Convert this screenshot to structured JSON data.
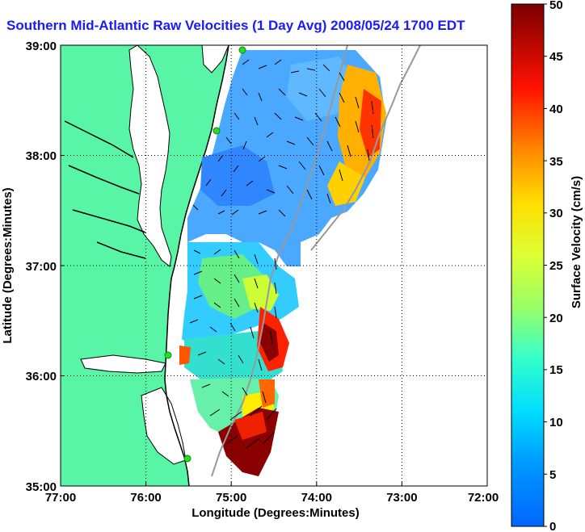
{
  "title": "Southern Mid-Atlantic Raw Velocities (1 Day Avg) 2008/05/24 1700 EDT",
  "x_axis": {
    "label": "Longitude (Degrees:Minutes)",
    "ticks": [
      "77:00",
      "76:00",
      "75:00",
      "74:00",
      "73:00",
      "72:00"
    ]
  },
  "y_axis": {
    "label": "Latitude (Degrees:Minutes)",
    "ticks": [
      "39:00",
      "38:00",
      "37:00",
      "36:00",
      "35:00"
    ]
  },
  "colorbar": {
    "label": "Surface Velocity (cm/s)",
    "ticks": [
      "50",
      "45",
      "40",
      "35",
      "30",
      "25",
      "20",
      "15",
      "10",
      "5",
      "0"
    ],
    "min": 0,
    "max": 50,
    "colormap": [
      "#0000ff",
      "#0080ff",
      "#00ffff",
      "#80ff80",
      "#ffff00",
      "#ff8000",
      "#ff0000",
      "#800000"
    ]
  },
  "colors": {
    "land": "#57f5a5",
    "ocean_background": "#ffffff",
    "coastline": "#000000",
    "bathymetry": "#999999",
    "gridline": "#000000",
    "station_marker": "#22dd22",
    "title_color": "#1a1aff"
  },
  "map": {
    "lon_range": [
      -77,
      -72
    ],
    "lat_range": [
      35,
      39
    ],
    "grid": true,
    "stations": [
      "station-1",
      "station-2",
      "station-3",
      "station-4"
    ]
  }
}
